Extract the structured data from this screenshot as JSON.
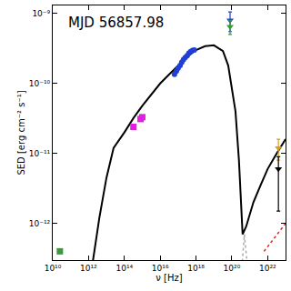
{
  "chart_data": {
    "type": "scatter",
    "annotation": "MJD 56857.98",
    "x_label": "ν [Hz]",
    "y_label": "SED [erg cm⁻² s⁻¹]",
    "log": true,
    "grid": false,
    "xlim": [
      10000000000.0,
      1e+23
    ],
    "ylim": [
      3e-13,
      1.3e-09
    ],
    "xticks": [
      {
        "value": 10000000000.0,
        "label": "10¹⁰"
      },
      {
        "value": 1000000000000.0,
        "label": "10¹²"
      },
      {
        "value": 100000000000000.0,
        "label": "10¹⁴"
      },
      {
        "value": 1e+16,
        "label": "10¹⁶"
      },
      {
        "value": 1e+18,
        "label": "10¹⁸"
      },
      {
        "value": 1e+20,
        "label": "10²⁰"
      },
      {
        "value": 1e+22,
        "label": "10²²"
      }
    ],
    "yticks": [
      {
        "value": 1e-12,
        "label": "10⁻¹²"
      },
      {
        "value": 1e-11,
        "label": "10⁻¹¹"
      },
      {
        "value": 1e-10,
        "label": "10⁻¹⁰"
      },
      {
        "value": 1e-09,
        "label": "10⁻⁹"
      }
    ],
    "series": [
      {
        "type": "line",
        "color": "#000000",
        "line_style": "solid",
        "x": [
          1600000000000.0,
          4000000000000.0,
          10000000000000.0,
          25000000000000.0,
          100000000000000.0,
          320000000000000.0,
          1000000000000000.0,
          3200000000000000.0,
          1e+16,
          3.2e+16,
          1e+17,
          3.2e+17,
          1e+18,
          3.2e+18,
          1e+19,
          3.2e+19,
          6.3e+19,
          1.6e+20,
          2.5e+20,
          3.2e+20,
          4e+20,
          6.3e+20,
          1.6e+21,
          4e+21,
          1e+22,
          3.2e+22,
          1e+23
        ],
        "values": [
          2.5e-13,
          1.2e-12,
          4.5e-12,
          1.2e-11,
          2e-11,
          3.2e-11,
          4.8e-11,
          7e-11,
          1e-10,
          1.35e-10,
          1.8e-10,
          2.4e-10,
          3e-10,
          3.4e-10,
          3.5e-10,
          2.9e-10,
          1.8e-10,
          4e-11,
          8e-12,
          2e-12,
          7e-13,
          9e-13,
          2e-12,
          3.5e-12,
          6e-12,
          1e-11,
          1.6e-11
        ]
      },
      {
        "type": "line",
        "color": "#aaaaaa",
        "line_style": "dot",
        "x": [
          3.5e+20,
          5e+20,
          8e+20
        ],
        "values": [
          2e-13,
          7e-13,
          2e-13
        ]
      },
      {
        "type": "line",
        "color": "#e02020",
        "line_style": "dot",
        "x": [
          6.3e+21,
          1e+23
        ],
        "values": [
          4e-13,
          1e-12
        ]
      },
      {
        "type": "scatter",
        "color": "#3a9a3a",
        "marker": "square",
        "x": [
          25000000000.0
        ],
        "values": [
          4e-13
        ]
      },
      {
        "type": "scatter",
        "color": "#e020e0",
        "marker": "square",
        "x": [
          320000000000000.0,
          800000000000000.0,
          1000000000000000.0
        ],
        "values": [
          2.4e-11,
          3.1e-11,
          3.3e-11
        ]
      },
      {
        "type": "scatter",
        "color": "#1f3fd6",
        "marker": "circle",
        "x": [
          6.3e+16,
          8e+16,
          1e+17,
          1.3e+17,
          1.6e+17,
          2e+17,
          2.5e+17,
          3.2e+17,
          4e+17,
          5e+17,
          6.3e+17,
          8e+17
        ],
        "values": [
          1.35e-10,
          1.5e-10,
          1.65e-10,
          1.8e-10,
          2e-10,
          2.2e-10,
          2.35e-10,
          2.5e-10,
          2.7e-10,
          2.85e-10,
          2.95e-10,
          3e-10
        ]
      },
      {
        "type": "scatter",
        "color": "#1f3fd6",
        "marker": "triangle-down",
        "x": [
          8e+19
        ],
        "values": [
          8e-10
        ],
        "error_plus": [
          2.5e-10
        ],
        "error_minus": [
          2.5e-10
        ]
      },
      {
        "type": "scatter",
        "color": "#3a9a3a",
        "marker": "triangle-down",
        "x": [
          8e+19
        ],
        "values": [
          6.5e-10
        ],
        "error_plus": [
          1.5e-10
        ],
        "error_minus": [
          1.5e-10
        ]
      },
      {
        "type": "scatter",
        "color": "#d4a020",
        "marker": "triangle-down",
        "x": [
          4e+22
        ],
        "values": [
          1.2e-11
        ],
        "error_plus": [
          4e-12
        ],
        "error_minus": [
          4e-12
        ]
      },
      {
        "type": "scatter",
        "color": "#000000",
        "marker": "triangle-down",
        "x": [
          4e+22
        ],
        "values": [
          6e-12
        ],
        "error_plus": [
          3e-12
        ],
        "error_minus": [
          4.5e-12
        ]
      }
    ]
  }
}
